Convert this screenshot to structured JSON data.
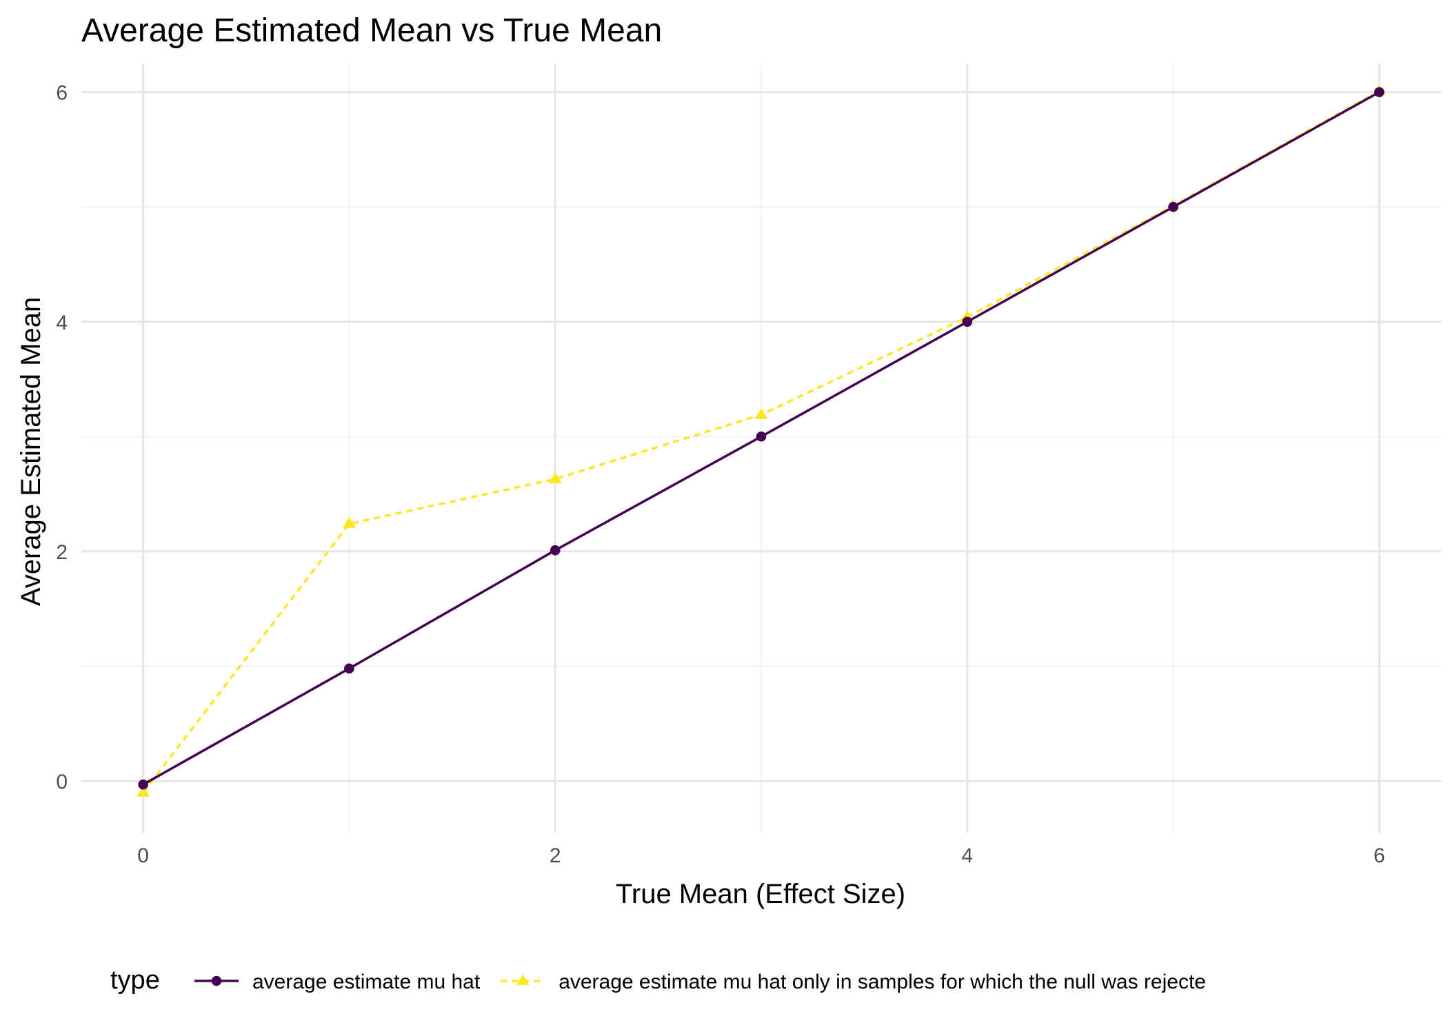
{
  "chart_data": {
    "type": "line",
    "title": "Average Estimated Mean vs True Mean",
    "xlabel": "True Mean (Effect Size)",
    "ylabel": "Average Estimated Mean",
    "x": [
      0,
      1,
      2,
      3,
      4,
      5,
      6
    ],
    "xlim": [
      -0.3,
      6.3
    ],
    "ylim": [
      -0.45,
      6.25
    ],
    "xticks": [
      0,
      2,
      4,
      6
    ],
    "yticks": [
      0,
      2,
      4,
      6
    ],
    "grid": true,
    "legend": {
      "title": "type",
      "position": "bottom"
    },
    "series": [
      {
        "name": "average estimate mu hat",
        "values": [
          -0.03,
          0.98,
          2.01,
          3.0,
          4.0,
          5.0,
          6.0
        ],
        "color": "#440154",
        "line_style": "solid",
        "marker": "circle"
      },
      {
        "name": "average estimate mu hat only in samples for which the null was rejecte",
        "values": [
          -0.1,
          2.24,
          2.63,
          3.19,
          4.04,
          5.01,
          6.01
        ],
        "color": "#FDE725",
        "line_style": "dashed",
        "marker": "triangle"
      }
    ]
  }
}
